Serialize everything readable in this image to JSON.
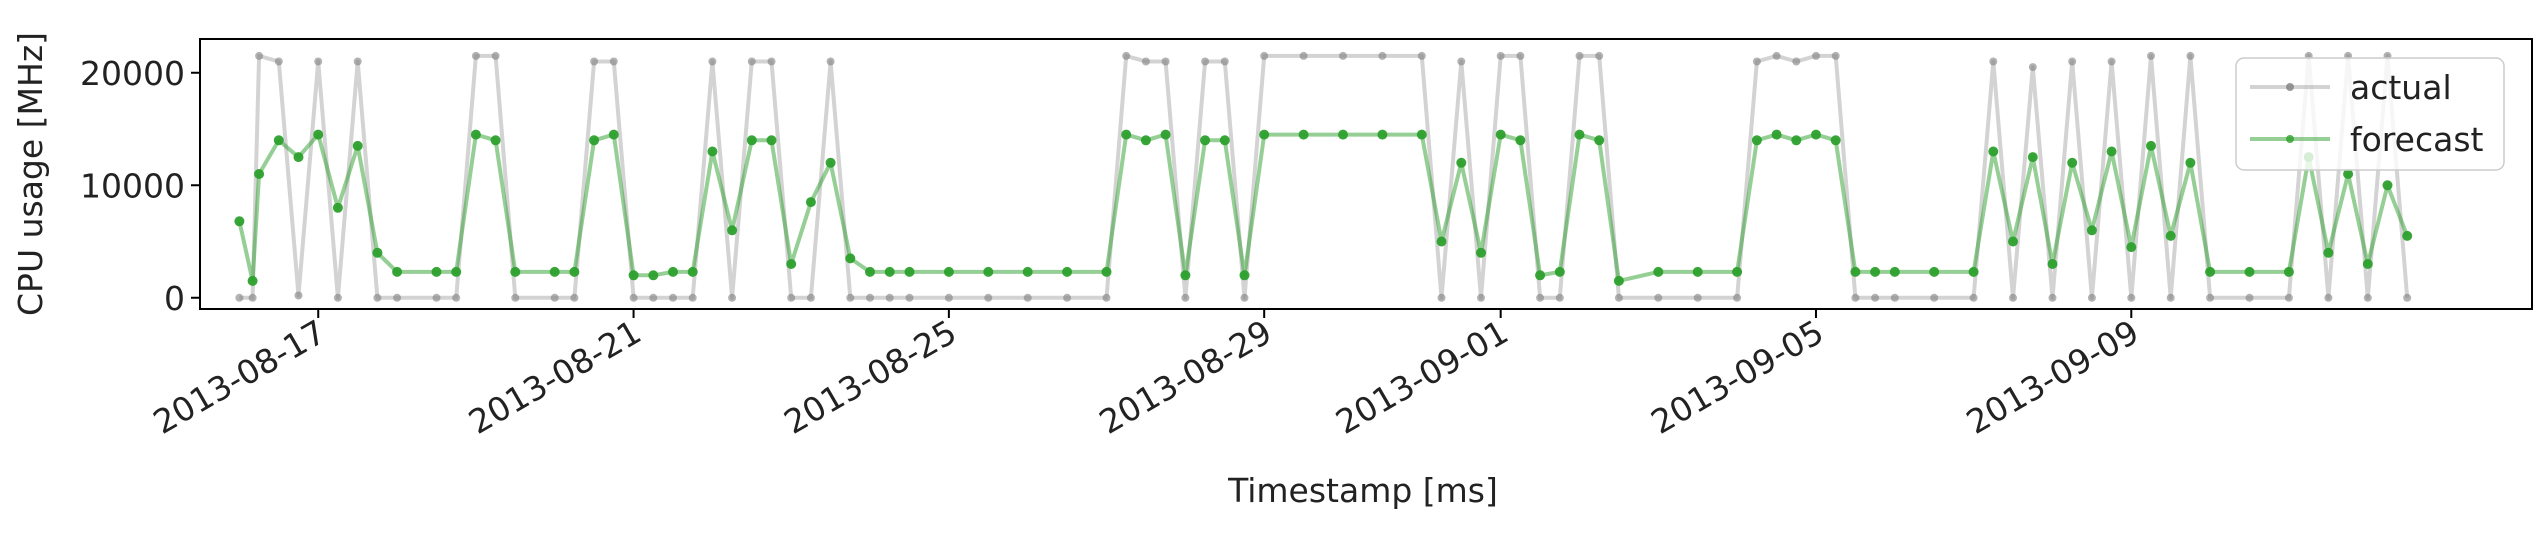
{
  "chart_data": {
    "type": "line",
    "xlabel": "Timestamp [ms]",
    "ylabel": "CPU usage [MHz]",
    "x_type": "date",
    "xlim": [
      "2013-08-15T12:00",
      "2013-09-14T02:00"
    ],
    "ylim": [
      -1000,
      23000
    ],
    "xticks": [
      "2013-08-17",
      "2013-08-21",
      "2013-08-25",
      "2013-08-29",
      "2013-09-01",
      "2013-09-05",
      "2013-09-09"
    ],
    "yticks": [
      0,
      10000,
      20000
    ],
    "ytick_labels": [
      "0",
      "10000",
      "20000"
    ],
    "grid": false,
    "legend_position": "top-right",
    "series": [
      {
        "name": "actual",
        "color": "#808080",
        "style": "line-with-dots",
        "points": [
          [
            "2013-08-16T00:00",
            0
          ],
          [
            "2013-08-16T04:00",
            0
          ],
          [
            "2013-08-16T06:00",
            21500
          ],
          [
            "2013-08-16T12:00",
            21000
          ],
          [
            "2013-08-16T18:00",
            200
          ],
          [
            "2013-08-17T00:00",
            21000
          ],
          [
            "2013-08-17T06:00",
            0
          ],
          [
            "2013-08-17T12:00",
            21000
          ],
          [
            "2013-08-17T18:00",
            0
          ],
          [
            "2013-08-18T00:00",
            0
          ],
          [
            "2013-08-18T12:00",
            0
          ],
          [
            "2013-08-18T18:00",
            0
          ],
          [
            "2013-08-19T00:00",
            21500
          ],
          [
            "2013-08-19T06:00",
            21500
          ],
          [
            "2013-08-19T12:00",
            0
          ],
          [
            "2013-08-20T00:00",
            0
          ],
          [
            "2013-08-20T06:00",
            0
          ],
          [
            "2013-08-20T12:00",
            21000
          ],
          [
            "2013-08-20T18:00",
            21000
          ],
          [
            "2013-08-21T00:00",
            0
          ],
          [
            "2013-08-21T06:00",
            0
          ],
          [
            "2013-08-21T12:00",
            0
          ],
          [
            "2013-08-21T18:00",
            0
          ],
          [
            "2013-08-22T00:00",
            21000
          ],
          [
            "2013-08-22T06:00",
            0
          ],
          [
            "2013-08-22T12:00",
            21000
          ],
          [
            "2013-08-22T18:00",
            21000
          ],
          [
            "2013-08-23T00:00",
            0
          ],
          [
            "2013-08-23T06:00",
            0
          ],
          [
            "2013-08-23T12:00",
            21000
          ],
          [
            "2013-08-23T18:00",
            0
          ],
          [
            "2013-08-24T00:00",
            0
          ],
          [
            "2013-08-24T06:00",
            0
          ],
          [
            "2013-08-24T12:00",
            0
          ],
          [
            "2013-08-25T00:00",
            0
          ],
          [
            "2013-08-25T12:00",
            0
          ],
          [
            "2013-08-26T00:00",
            0
          ],
          [
            "2013-08-26T12:00",
            0
          ],
          [
            "2013-08-27T00:00",
            0
          ],
          [
            "2013-08-27T06:00",
            21500
          ],
          [
            "2013-08-27T12:00",
            21000
          ],
          [
            "2013-08-27T18:00",
            21000
          ],
          [
            "2013-08-28T00:00",
            0
          ],
          [
            "2013-08-28T06:00",
            21000
          ],
          [
            "2013-08-28T12:00",
            21000
          ],
          [
            "2013-08-28T18:00",
            0
          ],
          [
            "2013-08-29T00:00",
            21500
          ],
          [
            "2013-08-29T12:00",
            21500
          ],
          [
            "2013-08-30T00:00",
            21500
          ],
          [
            "2013-08-30T12:00",
            21500
          ],
          [
            "2013-08-31T00:00",
            21500
          ],
          [
            "2013-08-31T06:00",
            0
          ],
          [
            "2013-08-31T12:00",
            21000
          ],
          [
            "2013-08-31T18:00",
            0
          ],
          [
            "2013-09-01T00:00",
            21500
          ],
          [
            "2013-09-01T06:00",
            21500
          ],
          [
            "2013-09-01T12:00",
            0
          ],
          [
            "2013-09-01T18:00",
            0
          ],
          [
            "2013-09-02T00:00",
            21500
          ],
          [
            "2013-09-02T06:00",
            21500
          ],
          [
            "2013-09-02T12:00",
            0
          ],
          [
            "2013-09-03T00:00",
            0
          ],
          [
            "2013-09-03T12:00",
            0
          ],
          [
            "2013-09-04T00:00",
            0
          ],
          [
            "2013-09-04T06:00",
            21000
          ],
          [
            "2013-09-04T12:00",
            21500
          ],
          [
            "2013-09-04T18:00",
            21000
          ],
          [
            "2013-09-05T00:00",
            21500
          ],
          [
            "2013-09-05T06:00",
            21500
          ],
          [
            "2013-09-05T12:00",
            0
          ],
          [
            "2013-09-05T18:00",
            0
          ],
          [
            "2013-09-06T00:00",
            0
          ],
          [
            "2013-09-06T12:00",
            0
          ],
          [
            "2013-09-07T00:00",
            0
          ],
          [
            "2013-09-07T06:00",
            21000
          ],
          [
            "2013-09-07T12:00",
            0
          ],
          [
            "2013-09-07T18:00",
            20500
          ],
          [
            "2013-09-08T00:00",
            0
          ],
          [
            "2013-09-08T06:00",
            21000
          ],
          [
            "2013-09-08T12:00",
            0
          ],
          [
            "2013-09-08T18:00",
            21000
          ],
          [
            "2013-09-09T00:00",
            0
          ],
          [
            "2013-09-09T06:00",
            21500
          ],
          [
            "2013-09-09T12:00",
            0
          ],
          [
            "2013-09-09T18:00",
            21500
          ],
          [
            "2013-09-10T00:00",
            0
          ],
          [
            "2013-09-10T12:00",
            0
          ],
          [
            "2013-09-11T00:00",
            0
          ],
          [
            "2013-09-11T06:00",
            21500
          ],
          [
            "2013-09-11T12:00",
            0
          ],
          [
            "2013-09-11T18:00",
            21500
          ],
          [
            "2013-09-12T00:00",
            0
          ],
          [
            "2013-09-12T06:00",
            21500
          ],
          [
            "2013-09-12T12:00",
            0
          ]
        ]
      },
      {
        "name": "forecast",
        "color": "#2ca02c",
        "style": "line-with-dots",
        "points": [
          [
            "2013-08-16T00:00",
            6800
          ],
          [
            "2013-08-16T04:00",
            1500
          ],
          [
            "2013-08-16T06:00",
            11000
          ],
          [
            "2013-08-16T12:00",
            14000
          ],
          [
            "2013-08-16T18:00",
            12500
          ],
          [
            "2013-08-17T00:00",
            14500
          ],
          [
            "2013-08-17T06:00",
            8000
          ],
          [
            "2013-08-17T12:00",
            13500
          ],
          [
            "2013-08-17T18:00",
            4000
          ],
          [
            "2013-08-18T00:00",
            2300
          ],
          [
            "2013-08-18T12:00",
            2300
          ],
          [
            "2013-08-18T18:00",
            2300
          ],
          [
            "2013-08-19T00:00",
            14500
          ],
          [
            "2013-08-19T06:00",
            14000
          ],
          [
            "2013-08-19T12:00",
            2300
          ],
          [
            "2013-08-20T00:00",
            2300
          ],
          [
            "2013-08-20T06:00",
            2300
          ],
          [
            "2013-08-20T12:00",
            14000
          ],
          [
            "2013-08-20T18:00",
            14500
          ],
          [
            "2013-08-21T00:00",
            2000
          ],
          [
            "2013-08-21T06:00",
            2000
          ],
          [
            "2013-08-21T12:00",
            2300
          ],
          [
            "2013-08-21T18:00",
            2300
          ],
          [
            "2013-08-22T00:00",
            13000
          ],
          [
            "2013-08-22T06:00",
            6000
          ],
          [
            "2013-08-22T12:00",
            14000
          ],
          [
            "2013-08-22T18:00",
            14000
          ],
          [
            "2013-08-23T00:00",
            3000
          ],
          [
            "2013-08-23T06:00",
            8500
          ],
          [
            "2013-08-23T12:00",
            12000
          ],
          [
            "2013-08-23T18:00",
            3500
          ],
          [
            "2013-08-24T00:00",
            2300
          ],
          [
            "2013-08-24T06:00",
            2300
          ],
          [
            "2013-08-24T12:00",
            2300
          ],
          [
            "2013-08-25T00:00",
            2300
          ],
          [
            "2013-08-25T12:00",
            2300
          ],
          [
            "2013-08-26T00:00",
            2300
          ],
          [
            "2013-08-26T12:00",
            2300
          ],
          [
            "2013-08-27T00:00",
            2300
          ],
          [
            "2013-08-27T06:00",
            14500
          ],
          [
            "2013-08-27T12:00",
            14000
          ],
          [
            "2013-08-27T18:00",
            14500
          ],
          [
            "2013-08-28T00:00",
            2000
          ],
          [
            "2013-08-28T06:00",
            14000
          ],
          [
            "2013-08-28T12:00",
            14000
          ],
          [
            "2013-08-28T18:00",
            2000
          ],
          [
            "2013-08-29T00:00",
            14500
          ],
          [
            "2013-08-29T12:00",
            14500
          ],
          [
            "2013-08-30T00:00",
            14500
          ],
          [
            "2013-08-30T12:00",
            14500
          ],
          [
            "2013-08-31T00:00",
            14500
          ],
          [
            "2013-08-31T06:00",
            5000
          ],
          [
            "2013-08-31T12:00",
            12000
          ],
          [
            "2013-08-31T18:00",
            4000
          ],
          [
            "2013-09-01T00:00",
            14500
          ],
          [
            "2013-09-01T06:00",
            14000
          ],
          [
            "2013-09-01T12:00",
            2000
          ],
          [
            "2013-09-01T18:00",
            2300
          ],
          [
            "2013-09-02T00:00",
            14500
          ],
          [
            "2013-09-02T06:00",
            14000
          ],
          [
            "2013-09-02T12:00",
            1500
          ],
          [
            "2013-09-03T00:00",
            2300
          ],
          [
            "2013-09-03T12:00",
            2300
          ],
          [
            "2013-09-04T00:00",
            2300
          ],
          [
            "2013-09-04T06:00",
            14000
          ],
          [
            "2013-09-04T12:00",
            14500
          ],
          [
            "2013-09-04T18:00",
            14000
          ],
          [
            "2013-09-05T00:00",
            14500
          ],
          [
            "2013-09-05T06:00",
            14000
          ],
          [
            "2013-09-05T12:00",
            2300
          ],
          [
            "2013-09-05T18:00",
            2300
          ],
          [
            "2013-09-06T00:00",
            2300
          ],
          [
            "2013-09-06T12:00",
            2300
          ],
          [
            "2013-09-07T00:00",
            2300
          ],
          [
            "2013-09-07T06:00",
            13000
          ],
          [
            "2013-09-07T12:00",
            5000
          ],
          [
            "2013-09-07T18:00",
            12500
          ],
          [
            "2013-09-08T00:00",
            3000
          ],
          [
            "2013-09-08T06:00",
            12000
          ],
          [
            "2013-09-08T12:00",
            6000
          ],
          [
            "2013-09-08T18:00",
            13000
          ],
          [
            "2013-09-09T00:00",
            4500
          ],
          [
            "2013-09-09T06:00",
            13500
          ],
          [
            "2013-09-09T12:00",
            5500
          ],
          [
            "2013-09-09T18:00",
            12000
          ],
          [
            "2013-09-10T00:00",
            2300
          ],
          [
            "2013-09-10T12:00",
            2300
          ],
          [
            "2013-09-11T00:00",
            2300
          ],
          [
            "2013-09-11T06:00",
            12500
          ],
          [
            "2013-09-11T12:00",
            4000
          ],
          [
            "2013-09-11T18:00",
            11000
          ],
          [
            "2013-09-12T00:00",
            3000
          ],
          [
            "2013-09-12T06:00",
            10000
          ],
          [
            "2013-09-12T12:00",
            5500
          ]
        ]
      }
    ]
  }
}
